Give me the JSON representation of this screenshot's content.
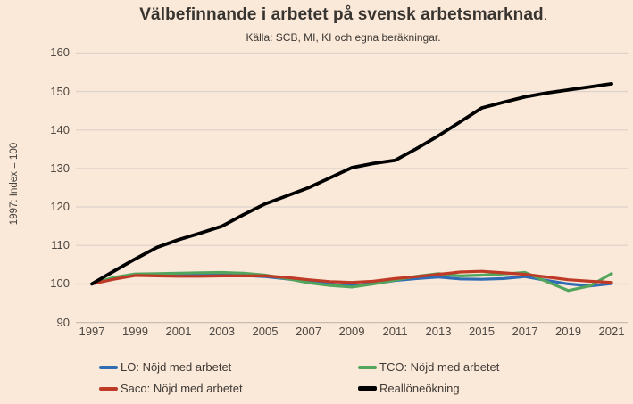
{
  "title": {
    "text": "Välbefinnande i arbetet på svensk arbetsmarknad",
    "period": "."
  },
  "subtitle": "Källa: SCB, MI, KI och egna beräkningar.",
  "y_axis_title": "1997: Index = 100",
  "colors": {
    "background": "#fae8d9",
    "gridline": "#ded4cd",
    "baseline": "#c8bdb3",
    "text": "#4c4741",
    "lo_blue": "#2f6cb3",
    "tco_green": "#52a55c",
    "saco_red": "#bf3a26",
    "reallon_black": "#000000"
  },
  "chart_data": {
    "type": "line",
    "title": "Välbefinnande i arbetet på svensk arbetsmarknad.",
    "subtitle": "Källa: SCB, MI, KI och egna beräkningar.",
    "ylabel": "1997: Index = 100",
    "xlabel": "",
    "ylim": [
      90,
      160
    ],
    "yticks": [
      90,
      100,
      110,
      120,
      130,
      140,
      150,
      160
    ],
    "grid": "horizontal",
    "legend_position": "bottom",
    "x": [
      1997,
      1998,
      1999,
      2000,
      2001,
      2002,
      2003,
      2004,
      2005,
      2006,
      2007,
      2008,
      2009,
      2010,
      2011,
      2012,
      2013,
      2014,
      2015,
      2016,
      2017,
      2018,
      2019,
      2020,
      2021
    ],
    "x_tick_labels": [
      "1997",
      "1999",
      "2001",
      "2003",
      "2005",
      "2007",
      "2009",
      "2011",
      "2013",
      "2015",
      "2017",
      "2019",
      "2021"
    ],
    "series": [
      {
        "name": "LO: Nöjd med arbetet",
        "color": "#2f6cb3",
        "values": [
          100,
          101.6,
          102.3,
          102.4,
          102.3,
          102.3,
          102.5,
          102.2,
          101.9,
          101.3,
          100.6,
          99.9,
          99.5,
          100.1,
          100.9,
          101.4,
          101.8,
          101.3,
          101.2,
          101.4,
          101.9,
          100.9,
          100.0,
          99.5,
          100.1
        ]
      },
      {
        "name": "TCO: Nöjd med arbetet",
        "color": "#52a55c",
        "values": [
          100,
          101.7,
          102.6,
          102.7,
          102.8,
          102.9,
          103.0,
          102.8,
          102.3,
          101.4,
          100.3,
          99.6,
          99.2,
          100.0,
          101.0,
          102.0,
          102.7,
          102.1,
          102.3,
          102.6,
          103.0,
          100.6,
          98.3,
          99.5,
          102.7
        ]
      },
      {
        "name": "Saco: Nöjd med arbetet",
        "color": "#bf3a26",
        "values": [
          100,
          101.2,
          102.2,
          102.1,
          102.0,
          102.0,
          102.1,
          102.1,
          102.1,
          101.7,
          101.1,
          100.6,
          100.4,
          100.7,
          101.4,
          101.9,
          102.5,
          103.1,
          103.3,
          102.9,
          102.5,
          101.8,
          101.1,
          100.7,
          100.4
        ]
      },
      {
        "name": "Reallöneökning",
        "color": "#000000",
        "values": [
          100,
          103.3,
          106.5,
          109.5,
          111.5,
          113.2,
          115.0,
          118.0,
          120.8,
          122.9,
          125.0,
          127.6,
          130.2,
          131.3,
          132.1,
          135.2,
          138.5,
          142.1,
          145.7,
          147.2,
          148.6,
          149.6,
          150.4,
          151.2,
          152.0
        ]
      }
    ]
  }
}
